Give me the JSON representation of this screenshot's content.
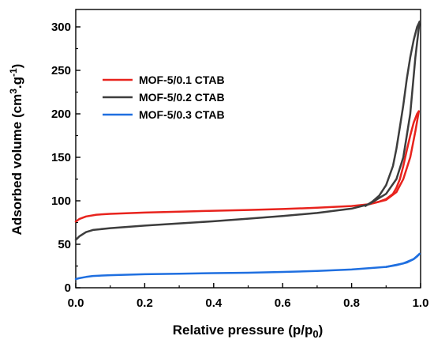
{
  "chart_data": {
    "type": "line",
    "xlabel": "Relative pressure (p/p0)",
    "ylabel": "Adsorbed volume (cm3.g-1)",
    "xlim": [
      0.0,
      1.0
    ],
    "ylim": [
      0,
      320
    ],
    "x_ticks": [
      0.0,
      0.2,
      0.4,
      0.6,
      0.8,
      1.0
    ],
    "x_tick_labels": [
      "0.0",
      "0.2",
      "0.4",
      "0.6",
      "0.8",
      "1.0"
    ],
    "y_ticks": [
      0,
      50,
      100,
      150,
      200,
      250,
      300
    ],
    "y_tick_labels": [
      "0",
      "50",
      "100",
      "150",
      "200",
      "250",
      "300"
    ],
    "grid": false,
    "legend_position": "upper-left",
    "series": [
      {
        "name": "MOF-5/0.1 CTAB",
        "color": "#e8231d",
        "adsorption": [
          [
            0.0,
            76
          ],
          [
            0.01,
            79
          ],
          [
            0.03,
            82
          ],
          [
            0.06,
            84
          ],
          [
            0.1,
            85
          ],
          [
            0.2,
            86.5
          ],
          [
            0.3,
            87.5
          ],
          [
            0.4,
            88.5
          ],
          [
            0.5,
            89.5
          ],
          [
            0.6,
            90.5
          ],
          [
            0.7,
            92
          ],
          [
            0.8,
            94
          ],
          [
            0.85,
            96
          ],
          [
            0.9,
            101
          ],
          [
            0.93,
            110
          ],
          [
            0.95,
            125
          ],
          [
            0.97,
            150
          ],
          [
            0.985,
            180
          ],
          [
            0.995,
            203
          ]
        ],
        "desorption": [
          [
            0.995,
            203
          ],
          [
            0.99,
            200
          ],
          [
            0.98,
            190
          ],
          [
            0.97,
            175
          ],
          [
            0.96,
            158
          ],
          [
            0.95,
            140
          ],
          [
            0.94,
            125
          ],
          [
            0.93,
            115
          ],
          [
            0.92,
            108
          ],
          [
            0.9,
            102
          ],
          [
            0.88,
            99
          ],
          [
            0.85,
            96
          ]
        ]
      },
      {
        "name": "MOF-5/0.2 CTAB",
        "color": "#3d3d3d",
        "adsorption": [
          [
            0.0,
            55
          ],
          [
            0.01,
            59
          ],
          [
            0.03,
            64
          ],
          [
            0.05,
            66.5
          ],
          [
            0.1,
            68.5
          ],
          [
            0.2,
            71.5
          ],
          [
            0.3,
            74
          ],
          [
            0.4,
            76.5
          ],
          [
            0.5,
            79.5
          ],
          [
            0.6,
            82.5
          ],
          [
            0.7,
            86
          ],
          [
            0.8,
            91
          ],
          [
            0.85,
            96
          ],
          [
            0.9,
            108
          ],
          [
            0.93,
            125
          ],
          [
            0.95,
            150
          ],
          [
            0.97,
            200
          ],
          [
            0.985,
            265
          ],
          [
            0.997,
            306
          ]
        ],
        "desorption": [
          [
            0.997,
            306
          ],
          [
            0.99,
            300
          ],
          [
            0.98,
            285
          ],
          [
            0.97,
            265
          ],
          [
            0.96,
            240
          ],
          [
            0.95,
            210
          ],
          [
            0.94,
            185
          ],
          [
            0.93,
            160
          ],
          [
            0.92,
            140
          ],
          [
            0.9,
            118
          ],
          [
            0.88,
            106
          ],
          [
            0.86,
            99
          ],
          [
            0.84,
            94
          ]
        ]
      },
      {
        "name": "MOF-5/0.3 CTAB",
        "color": "#1f6fe0",
        "adsorption": [
          [
            0.0,
            10
          ],
          [
            0.01,
            11
          ],
          [
            0.03,
            12.5
          ],
          [
            0.05,
            13.5
          ],
          [
            0.1,
            14.5
          ],
          [
            0.2,
            15.5
          ],
          [
            0.3,
            16.2
          ],
          [
            0.4,
            16.8
          ],
          [
            0.5,
            17.3
          ],
          [
            0.6,
            18.2
          ],
          [
            0.7,
            19.3
          ],
          [
            0.8,
            21
          ],
          [
            0.9,
            24
          ],
          [
            0.95,
            28
          ],
          [
            0.98,
            33
          ],
          [
            0.997,
            39
          ]
        ],
        "desorption": [
          [
            0.997,
            39
          ],
          [
            0.99,
            36
          ],
          [
            0.98,
            33
          ],
          [
            0.96,
            29
          ],
          [
            0.93,
            26
          ],
          [
            0.9,
            24
          ]
        ]
      }
    ]
  }
}
